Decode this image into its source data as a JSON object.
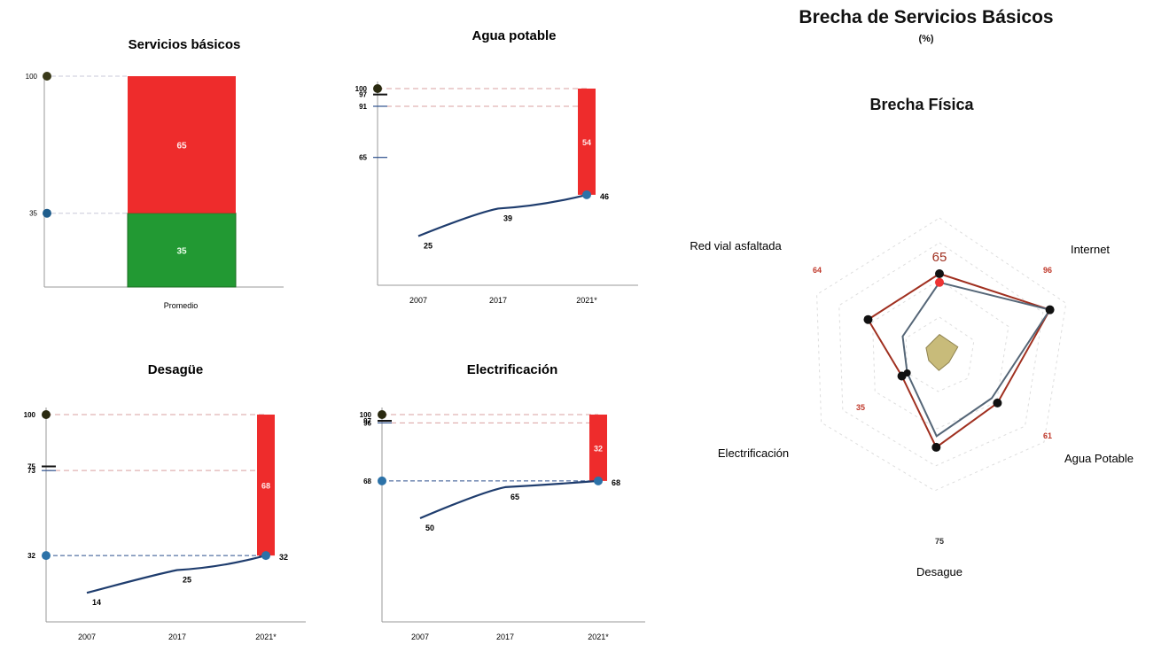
{
  "main": {
    "title": "Brecha de Servicios Básicos",
    "unit": "(%)"
  },
  "chart_data": [
    {
      "type": "bar",
      "title": "Servicios básicos",
      "categories": [
        "Promedio"
      ],
      "series": [
        {
          "values": [
            35
          ]
        },
        {
          "values": [
            65
          ]
        }
      ],
      "ylim": [
        0,
        100
      ],
      "y_marks": [
        {
          "value": 100,
          "label": "100"
        },
        {
          "value": 35,
          "label": "35"
        }
      ],
      "colors": {
        "coverage": "#229933",
        "gap": "#ee2c2c"
      }
    },
    {
      "type": "line",
      "title": "Agua potable",
      "x": [
        "2007",
        "2017",
        "2021*"
      ],
      "y": [
        25,
        39,
        46
      ],
      "gap": 54,
      "ylim": [
        0,
        100
      ],
      "y_marks": [
        {
          "value": 100,
          "label": "100"
        },
        {
          "value": 97,
          "label": "97"
        },
        {
          "value": 91,
          "label": "91"
        },
        {
          "value": 65,
          "label": "65"
        }
      ]
    },
    {
      "type": "line",
      "title": "Desagüe",
      "x": [
        "2007",
        "2017",
        "2021*"
      ],
      "y": [
        14,
        25,
        32
      ],
      "gap": 68,
      "ylim": [
        0,
        100
      ],
      "y_marks": [
        {
          "value": 100,
          "label": "100"
        },
        {
          "value": 75,
          "label": "75"
        },
        {
          "value": 73,
          "label": "73"
        },
        {
          "value": 32,
          "label": "32"
        }
      ]
    },
    {
      "type": "line",
      "title": "Electrificación",
      "x": [
        "2007",
        "2017",
        "2021*"
      ],
      "y": [
        50,
        65,
        68
      ],
      "gap": 32,
      "ylim": [
        0,
        100
      ],
      "y_marks": [
        {
          "value": 100,
          "label": "100"
        },
        {
          "value": 97,
          "label": "97"
        },
        {
          "value": 96,
          "label": "96"
        },
        {
          "value": 68,
          "label": "68"
        }
      ]
    },
    {
      "type": "radar",
      "title": "Brecha Física",
      "axes": [
        "Internet",
        "Agua Potable",
        "Desague",
        "Electrificación",
        "Red vial asfaltada"
      ],
      "top_value": "65",
      "value_labels": [
        "96",
        "61",
        "75",
        "35",
        "64"
      ],
      "series": [
        {
          "values": [
            96,
            61,
            75,
            35,
            64
          ],
          "color": "#a03020"
        },
        {
          "values": [
            96,
            55,
            66,
            30,
            33
          ],
          "color": "#556677"
        },
        {
          "values": [
            16,
            10,
            13,
            10,
            12
          ],
          "color": "#c8bb7a"
        }
      ],
      "top_series_values": [
        65,
        58,
        16
      ]
    }
  ]
}
